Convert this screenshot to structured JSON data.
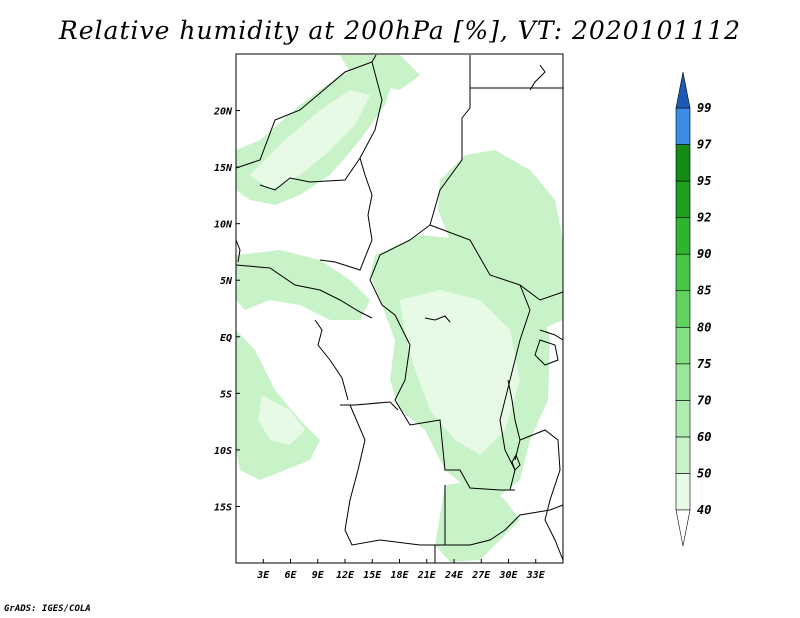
{
  "title": "Relative humidity at 200hPa [%], VT: 2020101112",
  "credit": "GrADS: IGES/COLA",
  "map": {
    "lon_range": [
      0,
      36
    ],
    "lat_range": [
      -20,
      25
    ],
    "lat_ticks": [
      {
        "value": 20,
        "label": "20N"
      },
      {
        "value": 15,
        "label": "15N"
      },
      {
        "value": 10,
        "label": "10N"
      },
      {
        "value": 5,
        "label": "5N"
      },
      {
        "value": 0,
        "label": "EQ"
      },
      {
        "value": -5,
        "label": "5S"
      },
      {
        "value": -10,
        "label": "10S"
      },
      {
        "value": -15,
        "label": "15S"
      }
    ],
    "lon_ticks": [
      {
        "value": 3,
        "label": "3E"
      },
      {
        "value": 6,
        "label": "6E"
      },
      {
        "value": 9,
        "label": "9E"
      },
      {
        "value": 12,
        "label": "12E"
      },
      {
        "value": 15,
        "label": "15E"
      },
      {
        "value": 18,
        "label": "18E"
      },
      {
        "value": 21,
        "label": "21E"
      },
      {
        "value": 24,
        "label": "24E"
      },
      {
        "value": 27,
        "label": "27E"
      },
      {
        "value": 30,
        "label": "30E"
      },
      {
        "value": 33,
        "label": "33E"
      }
    ]
  },
  "colorbar": {
    "levels": [
      {
        "label": "40",
        "color": "#e6fae6"
      },
      {
        "label": "50",
        "color": "#c8f2c8"
      },
      {
        "label": "60",
        "color": "#b0edb0"
      },
      {
        "label": "70",
        "color": "#9ae69a"
      },
      {
        "label": "75",
        "color": "#82df82"
      },
      {
        "label": "80",
        "color": "#5fd25f"
      },
      {
        "label": "85",
        "color": "#46c846"
      },
      {
        "label": "90",
        "color": "#2fb42f"
      },
      {
        "label": "92",
        "color": "#1ea01e"
      },
      {
        "label": "95",
        "color": "#158c15"
      },
      {
        "label": "97",
        "color": "#3c8ce6"
      },
      {
        "label": "99",
        "color": "#1e64cd"
      }
    ],
    "top_color": "#1e5ab4",
    "bottom_color": "#ffffff"
  },
  "colors": {
    "rh_light": "#e6fae6",
    "rh_mid": "#c8f2c8",
    "rh_strong": "#b0edb0"
  }
}
